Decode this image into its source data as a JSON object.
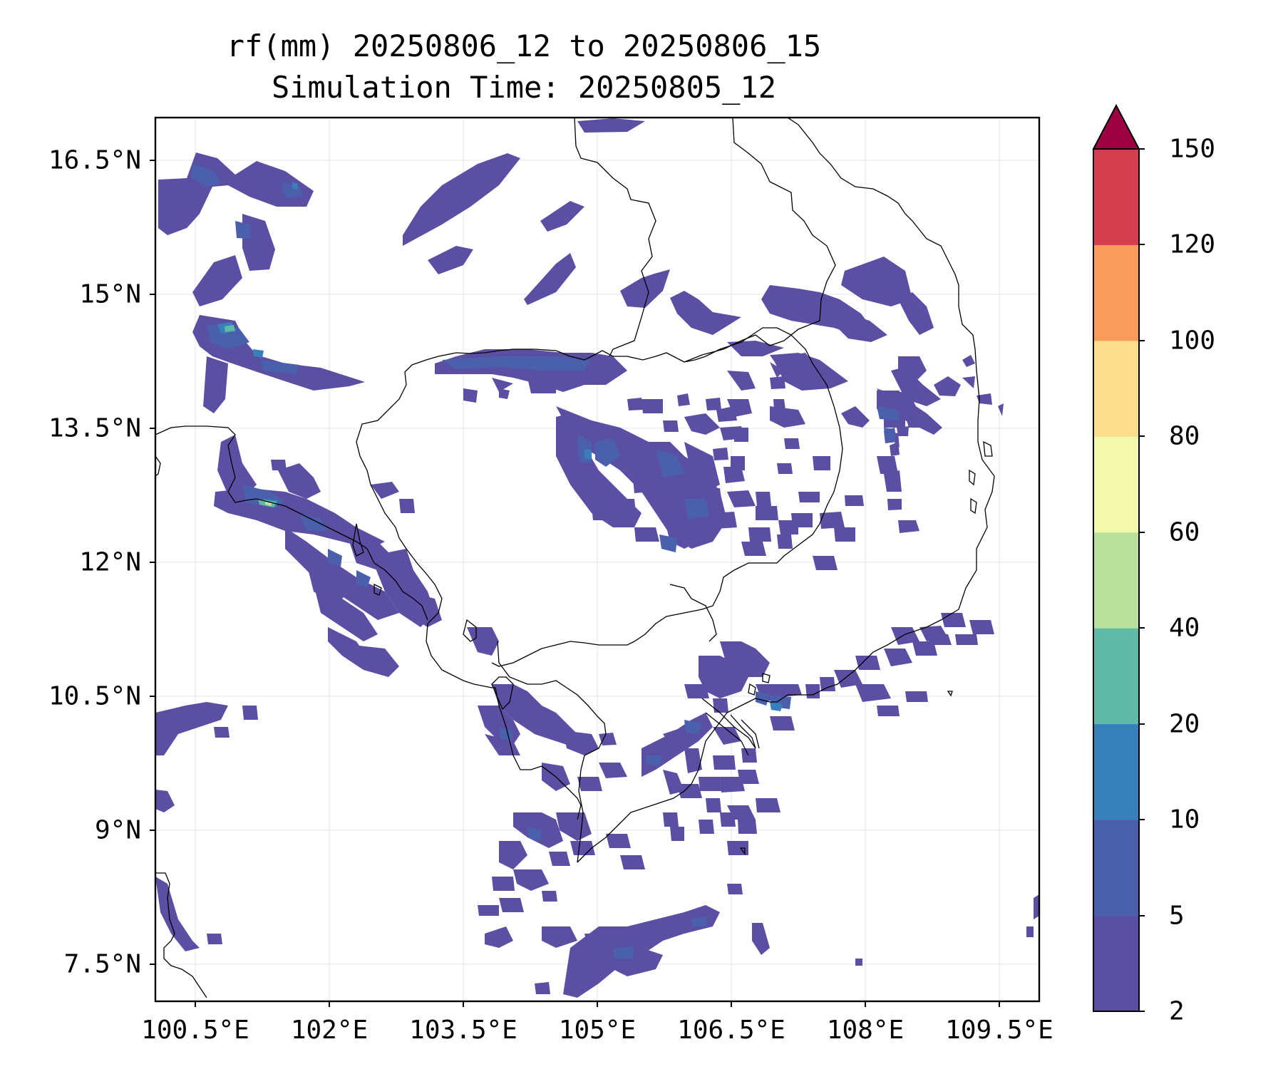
{
  "title_line1": "rf(mm) 20250806_12 to 20250806_15",
  "title_line2": "Simulation Time: 20250805_12",
  "y_ticks": [
    "16.5°N",
    "15°N",
    "13.5°N",
    "12°N",
    "10.5°N",
    "9°N",
    "7.5°N"
  ],
  "x_ticks": [
    "100.5°E",
    "102°E",
    "103.5°E",
    "105°E",
    "106.5°E",
    "108°E",
    "109.5°E"
  ],
  "colorbar": {
    "levels": [
      "2",
      "5",
      "10",
      "20",
      "40",
      "60",
      "80",
      "100",
      "120",
      "150"
    ],
    "colors": [
      "#5a4fa2",
      "#4a60ac",
      "#3880b9",
      "#5fbba6",
      "#b9e09d",
      "#f3f9ac",
      "#fbde8c",
      "#f89c5b",
      "#d53e4f",
      "#9e0142"
    ],
    "extend": "max"
  },
  "map": {
    "lon_range": [
      100.5,
      110.0
    ],
    "lat_range": [
      7.0,
      17.0
    ],
    "grid": true,
    "coastlines": true,
    "country_borders": true
  }
}
